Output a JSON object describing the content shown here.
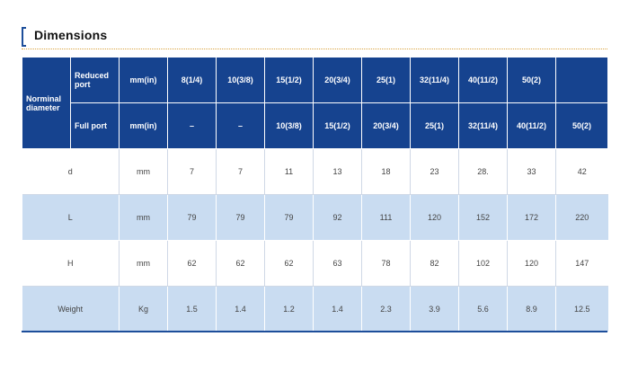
{
  "section": {
    "title": "Dimensions"
  },
  "table": {
    "nominal_label": "Norminal diameter",
    "reduced": {
      "label": "Reduced port",
      "unit": "mm(in)",
      "sizes": [
        "8(1/4)",
        "10(3/8)",
        "15(1/2)",
        "20(3/4)",
        "25(1)",
        "32(11/4)",
        "40(11/2)",
        "50(2)",
        ""
      ]
    },
    "full": {
      "label": "Full port",
      "unit": "mm(in)",
      "sizes": [
        "–",
        "–",
        "10(3/8)",
        "15(1/2)",
        "20(3/4)",
        "25(1)",
        "32(11/4)",
        "40(11/2)",
        "50(2)"
      ]
    },
    "rows": [
      {
        "name": "d",
        "unit": "mm",
        "values": [
          "7",
          "7",
          "11",
          "13",
          "18",
          "23",
          "28.",
          "33",
          "42"
        ]
      },
      {
        "name": "L",
        "unit": "mm",
        "values": [
          "79",
          "79",
          "79",
          "92",
          "111",
          "120",
          "152",
          "172",
          "220"
        ]
      },
      {
        "name": "H",
        "unit": "mm",
        "values": [
          "62",
          "62",
          "62",
          "63",
          "78",
          "82",
          "102",
          "120",
          "147"
        ]
      },
      {
        "name": "Weight",
        "unit": "Kg",
        "values": [
          "1.5",
          "1.4",
          "1.2",
          "1.4",
          "2.3",
          "3.9",
          "5.6",
          "8.9",
          "12.5"
        ]
      }
    ]
  }
}
